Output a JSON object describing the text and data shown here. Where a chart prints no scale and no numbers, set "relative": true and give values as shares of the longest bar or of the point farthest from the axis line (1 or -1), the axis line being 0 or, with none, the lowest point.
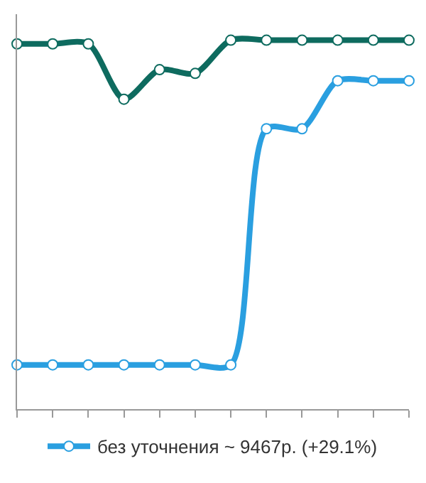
{
  "chart_data": {
    "type": "line",
    "relative": true,
    "categories": [
      null,
      null,
      null,
      null,
      null,
      null,
      null,
      null,
      null,
      null,
      null,
      null
    ],
    "series": [
      {
        "color": "#0e6b5f",
        "values": [
          0.99,
          0.99,
          0.99,
          0.84,
          0.92,
          0.91,
          1,
          1,
          1,
          1,
          1,
          1
        ]
      },
      {
        "name": "без уточнения ~ 9467р. (+29.1%)",
        "color": "#2a9fe0",
        "values": [
          0.12,
          0.12,
          0.12,
          0.12,
          0.12,
          0.12,
          0.12,
          0.76,
          0.76,
          0.89,
          0.89,
          0.89
        ]
      }
    ],
    "marker": "circle",
    "line_style": "solid",
    "legend": "bottom"
  }
}
